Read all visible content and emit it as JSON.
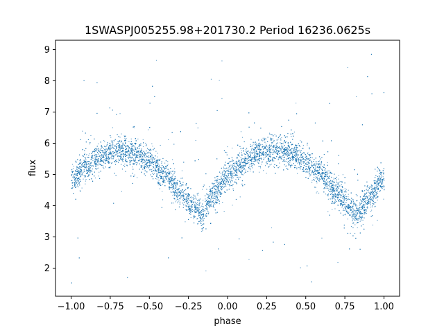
{
  "chart_data": {
    "type": "scatter",
    "title": "1SWASPJ005255.98+201730.2 Period 16236.0625s",
    "xlabel": "phase",
    "ylabel": "flux",
    "xlim": [
      -1.1,
      1.1
    ],
    "ylim": [
      1.1,
      9.3
    ],
    "xticks": [
      -1.0,
      -0.75,
      -0.5,
      -0.25,
      0.0,
      0.25,
      0.5,
      0.75,
      1.0
    ],
    "xtick_labels": [
      "−1.00",
      "−0.75",
      "−0.50",
      "−0.25",
      "0.00",
      "0.25",
      "0.50",
      "0.75",
      "1.00"
    ],
    "yticks": [
      2,
      3,
      4,
      5,
      6,
      7,
      8,
      9
    ],
    "ytick_labels": [
      "2",
      "3",
      "4",
      "5",
      "6",
      "7",
      "8",
      "9"
    ],
    "grid": false,
    "point_color": "#1f77b4",
    "curve": {
      "description_points_phase": [
        -1.0,
        -0.9,
        -0.8,
        -0.7,
        -0.6,
        -0.5,
        -0.4,
        -0.3,
        -0.2,
        -0.17,
        -0.1,
        0.0,
        0.1,
        0.2,
        0.3,
        0.4,
        0.5,
        0.6,
        0.7,
        0.8,
        0.83,
        0.9,
        1.0
      ],
      "description_points_flux": [
        4.9,
        5.3,
        5.6,
        5.8,
        5.7,
        5.4,
        5.0,
        4.4,
        3.9,
        3.75,
        4.3,
        5.0,
        5.4,
        5.7,
        5.8,
        5.7,
        5.4,
        5.0,
        4.4,
        3.85,
        3.75,
        4.3,
        4.9
      ],
      "band_halfwidth": 0.45
    }
  }
}
